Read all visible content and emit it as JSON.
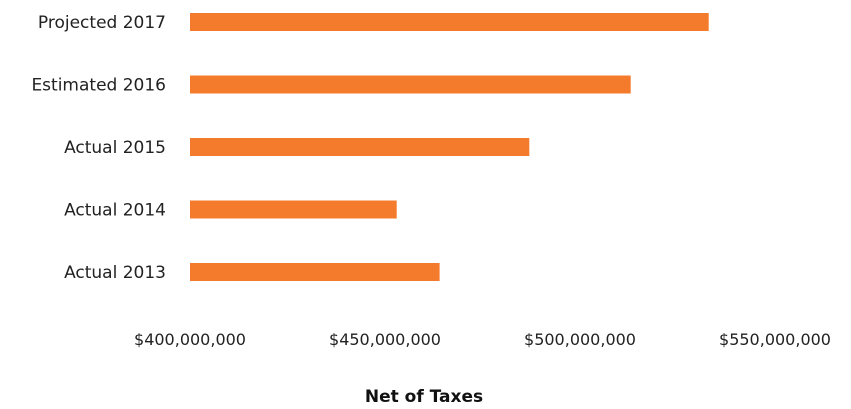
{
  "chart_data": {
    "type": "bar",
    "orientation": "horizontal",
    "categories": [
      "Projected 2017",
      "Estimated 2016",
      "Actual 2015",
      "Actual 2014",
      "Actual 2013"
    ],
    "values": [
      533000000,
      513000000,
      487000000,
      453000000,
      464000000
    ],
    "xlabel": "Net of Taxes",
    "xlim": [
      400000000,
      550000000
    ],
    "xticks": [
      400000000,
      450000000,
      500000000,
      550000000
    ],
    "xtick_labels": [
      "$400,000,000",
      "$450,000,000",
      "$500,000,000",
      "$550,000,000"
    ],
    "bar_color": "#F47B2B",
    "grid": false,
    "legend": "none"
  }
}
